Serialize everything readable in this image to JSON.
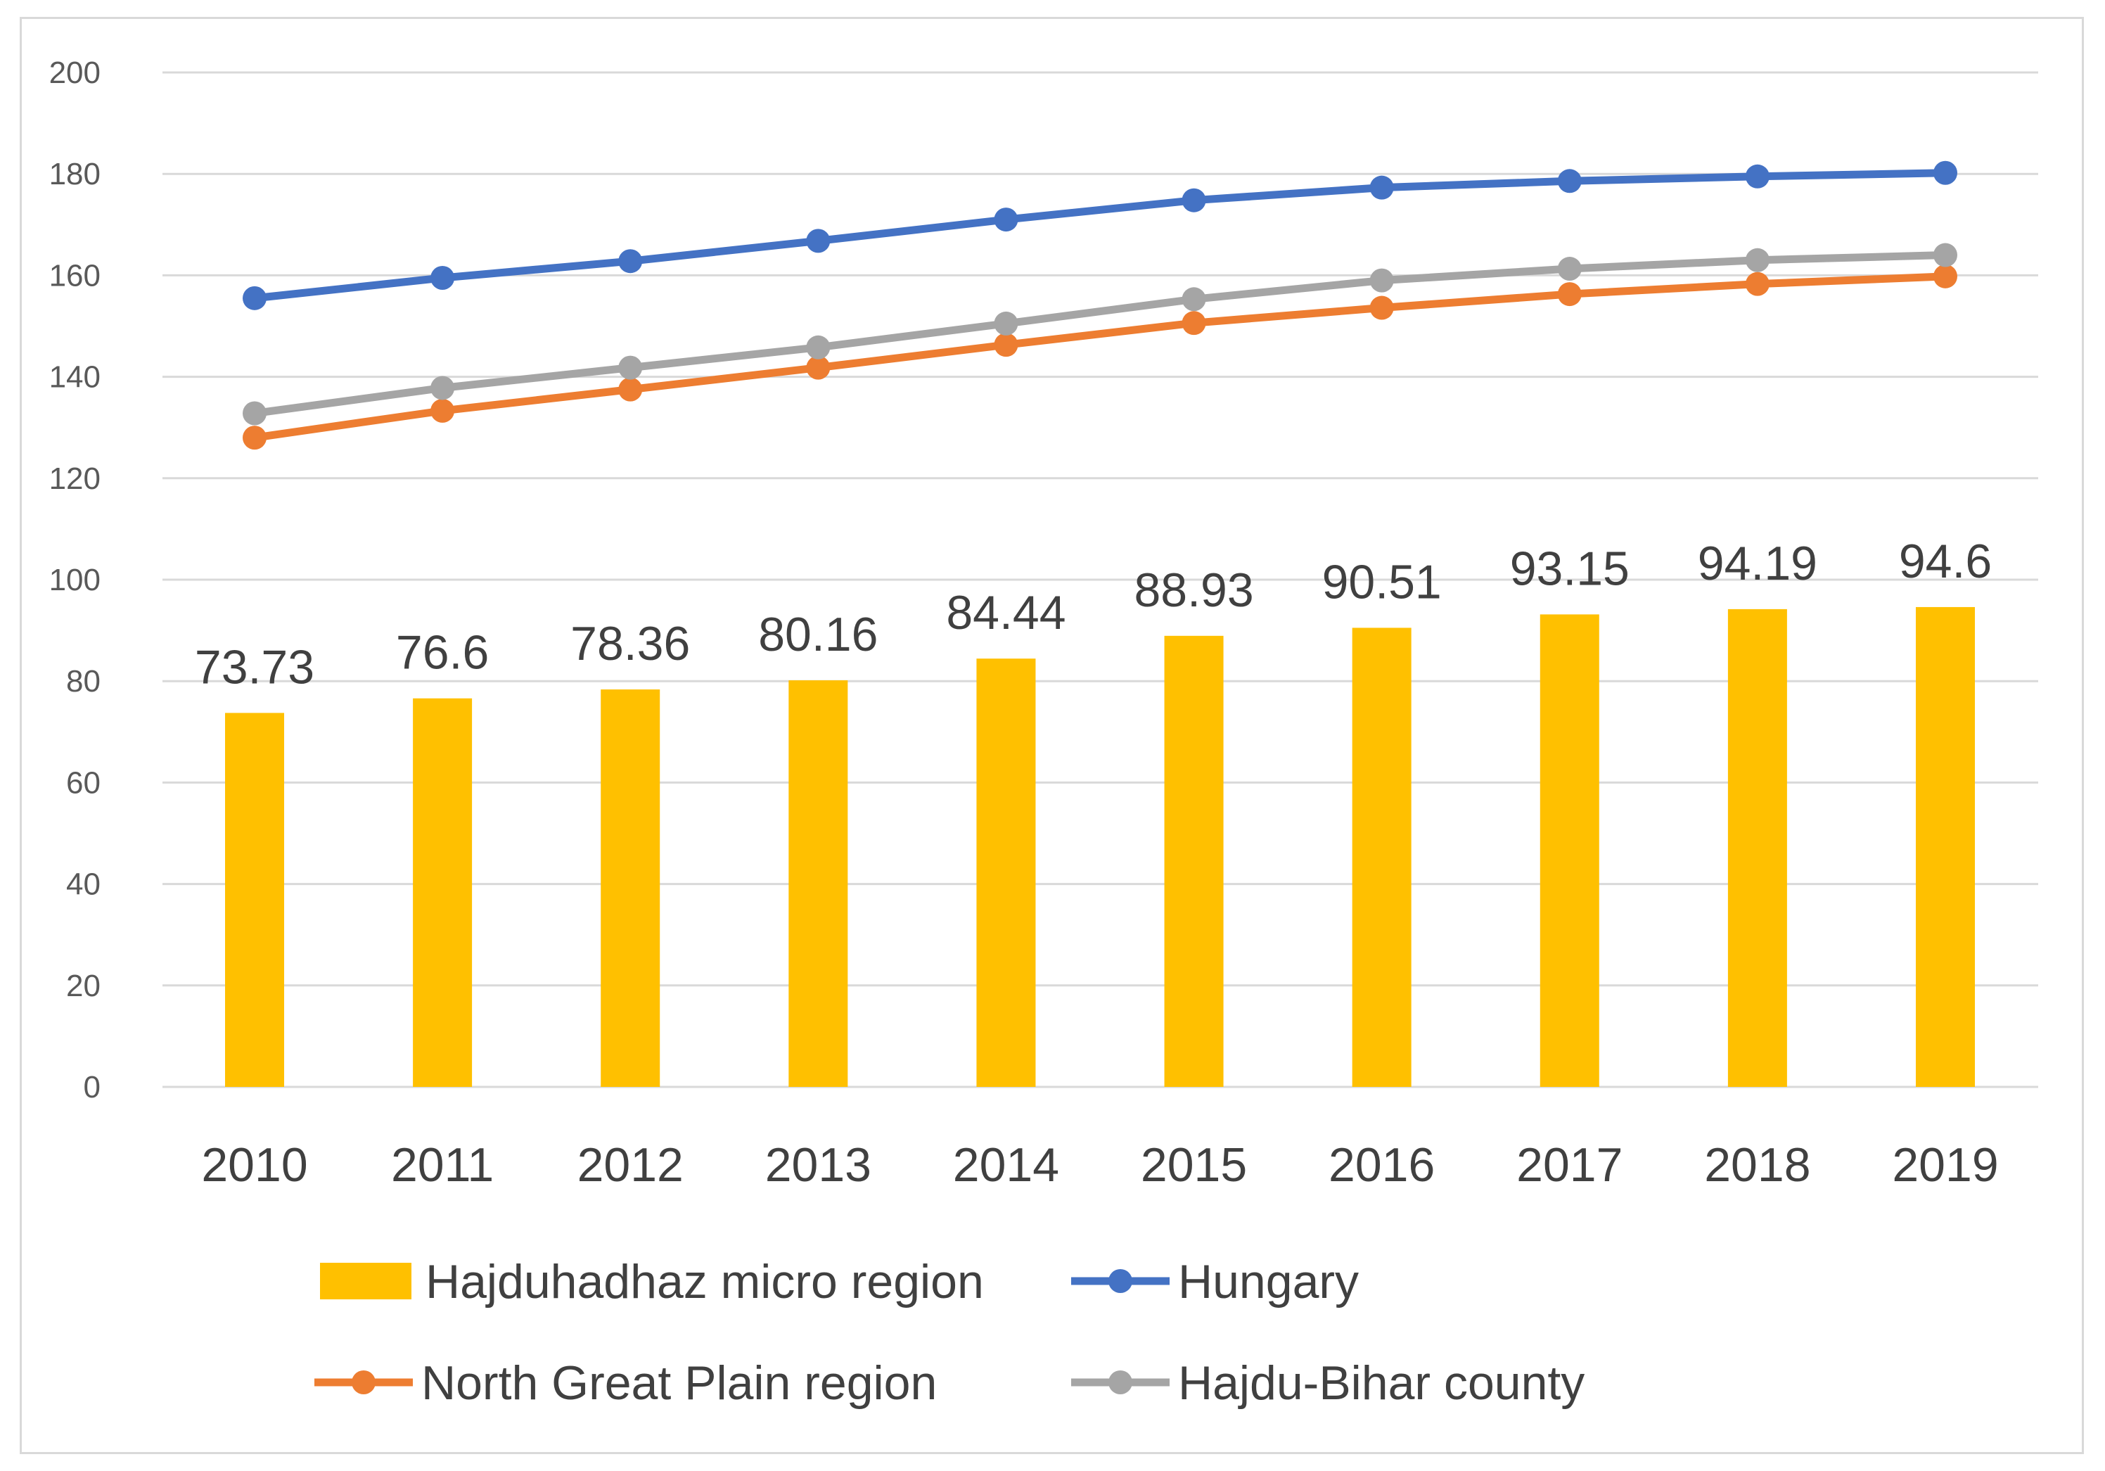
{
  "chart_data": {
    "type": "bar",
    "title": "",
    "xlabel": "",
    "ylabel": "",
    "ylim": [
      0,
      200
    ],
    "yticks": [
      0,
      20,
      40,
      60,
      80,
      100,
      120,
      140,
      160,
      180,
      200
    ],
    "grid": true,
    "legend_position": "bottom",
    "categories": [
      "2010",
      "2011",
      "2012",
      "2013",
      "2014",
      "2015",
      "2016",
      "2017",
      "2018",
      "2019"
    ],
    "bar_series": {
      "name": "Hajduhadhaz micro region",
      "color": "#FFC000",
      "values": [
        73.73,
        76.6,
        78.36,
        80.16,
        84.44,
        88.93,
        90.51,
        93.15,
        94.19,
        94.6
      ],
      "labels": [
        "73.73",
        "76.6",
        "78.36",
        "80.16",
        "84.44",
        "88.93",
        "90.51",
        "93.15",
        "94.19",
        "94.6"
      ]
    },
    "line_series": [
      {
        "name": "Hungary",
        "color": "#4472C4",
        "values": [
          155.5,
          159.5,
          162.8,
          166.8,
          171.0,
          174.8,
          177.3,
          178.6,
          179.5,
          180.2
        ]
      },
      {
        "name": "North Great Plain region",
        "color": "#ED7D31",
        "values": [
          128.0,
          133.3,
          137.5,
          141.8,
          146.3,
          150.6,
          153.6,
          156.3,
          158.3,
          159.8
        ]
      },
      {
        "name": "Hajdu-Bihar county",
        "color": "#A5A5A5",
        "values": [
          132.8,
          137.8,
          141.8,
          145.8,
          150.5,
          155.3,
          159.0,
          161.3,
          163.0,
          164.0
        ]
      }
    ],
    "gridline_color": "#D9D9D9"
  }
}
